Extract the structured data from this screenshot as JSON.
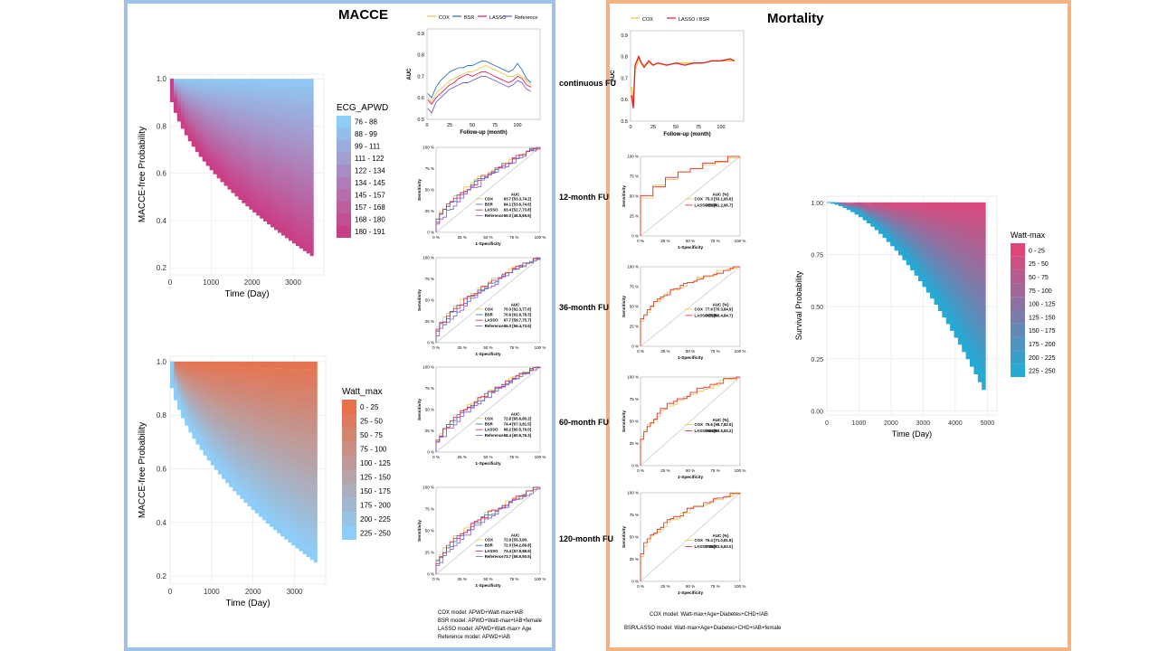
{
  "macce": {
    "title": "MACCE",
    "km_apwd": {
      "legend_title": "ECG_APWD",
      "legend": [
        "76 - 88",
        "88 - 99",
        "99 - 111",
        "111 - 122",
        "122 - 134",
        "134 - 145",
        "145 - 157",
        "157 - 168",
        "168 - 180",
        "180 - 191"
      ],
      "colors": [
        "#8ecdf7",
        "#c93f86"
      ],
      "xlabel": "Time (Day)",
      "ylabel": "MACCE-free Probability",
      "xticks": [
        "0",
        "1000",
        "2000",
        "3000"
      ],
      "yticks": [
        "0.2",
        "0.4",
        "0.6",
        "0.8",
        "1.0"
      ]
    },
    "km_watt": {
      "legend_title": "Watt_max",
      "legend": [
        "0 - 25",
        "25 - 50",
        "50 - 75",
        "75 - 100",
        "100 - 125",
        "125 - 150",
        "150 - 175",
        "175 - 200",
        "200 - 225",
        "225 - 250"
      ],
      "colors": [
        "#e8704a",
        "#8ecdf7"
      ],
      "xlabel": "Time (Day)",
      "ylabel": "MACCE-free Probability",
      "xticks": [
        "0",
        "1000",
        "2000",
        "3000"
      ],
      "yticks": [
        "0.2",
        "0.4",
        "0.6",
        "0.8",
        "1.0"
      ]
    },
    "auc_legend": [
      "COX",
      "BSR",
      "LASSO",
      "Reference"
    ],
    "auc_xlabel": "Follow-up (month)",
    "auc_ylabel": "AUC",
    "auc_xticks": [
      "0",
      "25",
      "50",
      "75",
      "100"
    ],
    "auc_yticks": [
      "0.5",
      "0.6",
      "0.7",
      "0.8",
      "0.9"
    ],
    "roc_xlabel": "1-Specificity",
    "roc_ylabel": "Sensitivity",
    "roc_ticks": [
      "0 %",
      "25 %",
      "50 %",
      "75 %",
      "100 %"
    ],
    "roc_auc_header": "AUC",
    "fu_labels": [
      "continuous FU",
      "12-month FU",
      "36-month FU",
      "60-month FU",
      "120-month FU"
    ],
    "roc_tables": [
      [
        "63.7 [53.3,74.2]",
        "64.1 [53.6,74.6]",
        "63.4 [52.7,73.8]",
        "59.0 [48.5,69.5]"
      ],
      [
        "70.0 [62.3,77.6]",
        "70.6 [62.9,78.3]",
        "67.7 [59.7,75.7]",
        "65.0 [56.4,73.6]"
      ],
      [
        "72.8 [65.6,80.2]",
        "74.4 [67.3,81.5]",
        "68.2 [60.5,76.0]",
        "68.4 [60.5,76.3]"
      ],
      [
        "72.9 [55.3,90.",
        "72.0 [54.2,89.8]",
        "73.4 [57.8,88.9]",
        "73.7 [56.9,90.5]"
      ]
    ],
    "model_notes": [
      "COX model: APWD+Watt-max+IAB",
      "BSR model: APWD+Watt-max+IAB+female",
      "LASSO model: APWD+Watt-max+ Age",
      "Reference model: APWD+IAB"
    ]
  },
  "mortality": {
    "title": "Mortality",
    "auc_legend": [
      "COX",
      "LASSO / BSR"
    ],
    "auc_header": "AUC (%)",
    "roc_tables": [
      [
        "75.3 [53.1,95.6]",
        "78.9 [61.2,96.7]"
      ],
      [
        "77.6 [70.3,84.9]",
        "76.5 [68.4,84.7]"
      ],
      [
        "75.6 [68.7,82.5]",
        "76.4 [69.5,83.2]"
      ],
      [
        "76.4 [71.0,81.8]",
        "77.8 [72.6,83.0]"
      ]
    ],
    "roc_model_labels": [
      "COX",
      "LASSO",
      "BSR"
    ],
    "km": {
      "legend_title": "Watt-max",
      "legend": [
        "0 - 25",
        "25 - 50",
        "50 - 75",
        "75 - 100",
        "100 - 125",
        "125 - 150",
        "150 - 175",
        "175 - 200",
        "200 - 225",
        "225 - 250"
      ],
      "colors": [
        "#e0457a",
        "#26a9d4"
      ],
      "xlabel": "Time (Day)",
      "ylabel": "Survival Probability",
      "xticks": [
        "0",
        "1000",
        "2000",
        "3000",
        "4000",
        "5000"
      ],
      "yticks": [
        "0.00",
        "0.25",
        "0.50",
        "0.75",
        "1.00"
      ]
    },
    "model_notes": [
      "COX model: Watt-max+Age+Diabetes+CHD+IAB",
      "BSR/LASSO model: Watt-max+Age+Diabetes+CHD+IAB+female"
    ]
  },
  "colors": {
    "cox": "#e8c84a",
    "bsr": "#2f6fb5",
    "lasso": "#d62060",
    "reference": "#7b5bc4",
    "mortality_red": "#e0201c"
  },
  "chart_data": [
    {
      "type": "line",
      "title": "MACCE continuous FU",
      "xlabel": "Follow-up (month)",
      "ylabel": "AUC",
      "xlim": [
        0,
        120
      ],
      "ylim": [
        0.5,
        0.9
      ],
      "x": [
        1,
        5,
        10,
        15,
        20,
        25,
        30,
        35,
        40,
        45,
        50,
        55,
        60,
        65,
        70,
        75,
        80,
        85,
        90,
        95,
        100,
        105,
        110,
        115
      ],
      "series": [
        {
          "name": "COX",
          "values": [
            0.6,
            0.58,
            0.62,
            0.64,
            0.66,
            0.68,
            0.69,
            0.7,
            0.71,
            0.72,
            0.72,
            0.73,
            0.74,
            0.75,
            0.74,
            0.73,
            0.72,
            0.71,
            0.7,
            0.7,
            0.71,
            0.7,
            0.68,
            0.66
          ]
        },
        {
          "name": "BSR",
          "values": [
            0.62,
            0.6,
            0.65,
            0.68,
            0.7,
            0.72,
            0.73,
            0.74,
            0.74,
            0.75,
            0.75,
            0.76,
            0.77,
            0.77,
            0.76,
            0.75,
            0.74,
            0.73,
            0.72,
            0.73,
            0.76,
            0.73,
            0.69,
            0.67
          ]
        },
        {
          "name": "LASSO",
          "values": [
            0.59,
            0.57,
            0.6,
            0.62,
            0.64,
            0.66,
            0.67,
            0.69,
            0.7,
            0.71,
            0.7,
            0.71,
            0.72,
            0.72,
            0.71,
            0.7,
            0.69,
            0.68,
            0.67,
            0.68,
            0.7,
            0.69,
            0.66,
            0.65
          ]
        },
        {
          "name": "Reference",
          "values": [
            0.55,
            0.53,
            0.58,
            0.6,
            0.62,
            0.64,
            0.65,
            0.66,
            0.67,
            0.67,
            0.68,
            0.69,
            0.7,
            0.7,
            0.69,
            0.68,
            0.67,
            0.66,
            0.65,
            0.66,
            0.68,
            0.67,
            0.64,
            0.63
          ]
        }
      ]
    },
    {
      "type": "line",
      "title": "Mortality continuous FU",
      "xlabel": "Follow-up (month)",
      "ylabel": "AUC",
      "xlim": [
        0,
        120
      ],
      "ylim": [
        0.5,
        0.9
      ],
      "x": [
        1,
        3,
        5,
        7,
        9,
        12,
        15,
        20,
        25,
        30,
        40,
        50,
        60,
        70,
        80,
        90,
        100,
        110,
        115
      ],
      "series": [
        {
          "name": "COX",
          "values": [
            0.66,
            0.58,
            0.74,
            0.76,
            0.79,
            0.77,
            0.76,
            0.77,
            0.76,
            0.77,
            0.76,
            0.77,
            0.77,
            0.77,
            0.77,
            0.78,
            0.78,
            0.78,
            0.78
          ]
        },
        {
          "name": "LASSO / BSR",
          "values": [
            0.62,
            0.56,
            0.76,
            0.78,
            0.8,
            0.77,
            0.75,
            0.78,
            0.76,
            0.77,
            0.76,
            0.77,
            0.76,
            0.77,
            0.77,
            0.78,
            0.78,
            0.79,
            0.78
          ]
        }
      ]
    }
  ]
}
